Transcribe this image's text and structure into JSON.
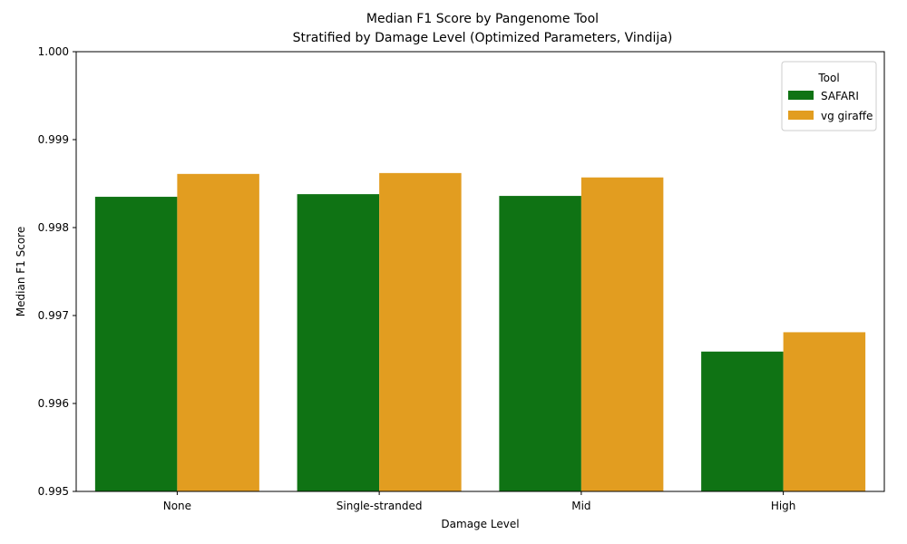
{
  "chart_data": {
    "type": "bar",
    "title": "Median F1 Score by Pangenome Tool",
    "subtitle": "Stratified by Damage Level (Optimized Parameters, Vindija)",
    "xlabel": "Damage Level",
    "ylabel": "Median F1 Score",
    "categories": [
      "None",
      "Single-stranded",
      "Mid",
      "High"
    ],
    "ylim": [
      0.995,
      1.0
    ],
    "yticks": [
      "0.995",
      "0.996",
      "0.997",
      "0.998",
      "0.999",
      "1.000"
    ],
    "ytick_values": [
      0.995,
      0.996,
      0.997,
      0.998,
      0.999,
      1.0
    ],
    "grid": false,
    "legend": {
      "title": "Tool",
      "placement": "top-right"
    },
    "series": [
      {
        "name": "SAFARI",
        "color": "#0f7314",
        "values": [
          0.99835,
          0.99838,
          0.99836,
          0.99659
        ]
      },
      {
        "name": "vg giraffe",
        "color": "#e29d20",
        "values": [
          0.99861,
          0.99862,
          0.99857,
          0.99681
        ]
      }
    ]
  }
}
